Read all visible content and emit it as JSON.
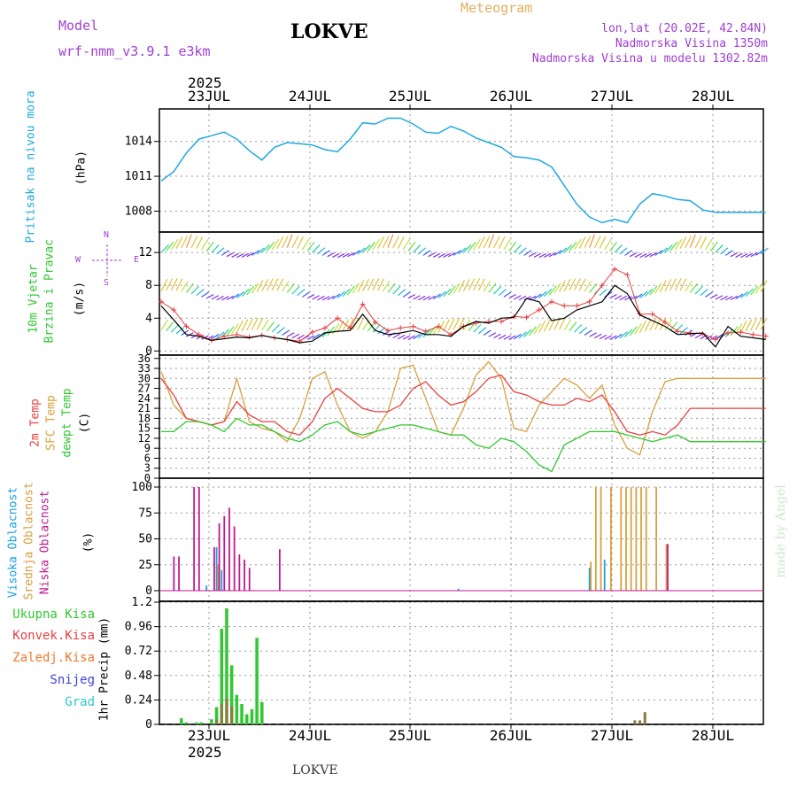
{
  "header": {
    "model_label": "Model",
    "model_name": "wrf-nmm_v3.9.1  e3km",
    "station": "LOKVE",
    "meteogram": "Meteogram",
    "lonlat": "lon,lat (20.02E, 42.84N)",
    "altitude": "Nadmorska Visina 1350m",
    "model_altitude": "Nadmorska Visina u modelu 1302.82m",
    "watermark": "made by Angel",
    "footer_station": "LOKVE"
  },
  "time_axis": {
    "year": "2025",
    "days": [
      "23JUL",
      "24JUL",
      "25JUL",
      "26JUL",
      "27JUL",
      "28JUL"
    ]
  },
  "panels": {
    "pressure": {
      "title": "Pritisak na nivou mora",
      "unit": "(hPa)",
      "ticks": [
        "1014",
        "1011",
        "1008"
      ]
    },
    "wind": {
      "title1": "10m Vjetar",
      "title2": "Brzina i Pravac",
      "unit": "(m/s)",
      "ticks": [
        "12",
        "8",
        "4",
        "0"
      ],
      "compass": {
        "n": "N",
        "s": "S",
        "w": "W",
        "e": "E"
      }
    },
    "temp": {
      "title1": "2m Temp",
      "title2": "SFC Temp",
      "title3": "dewpt Temp",
      "unit": "(C)",
      "ticks": [
        "36",
        "33",
        "30",
        "27",
        "24",
        "21",
        "18",
        "15",
        "12",
        "9",
        "6",
        "3",
        "0"
      ]
    },
    "cloud": {
      "title1": "Visoka Oblacnost",
      "title2": "Srednja Oblacnost",
      "title3": "Niska Oblacnost",
      "unit": "(%)",
      "ticks": [
        "100",
        "75",
        "50",
        "25",
        "0"
      ]
    },
    "precip": {
      "legend": [
        "Ukupna Kisa",
        "Konvek.Kisa",
        "Zaledj.Kisa",
        "Snijeg",
        "Grad"
      ],
      "unit": "1hr Precip (mm)",
      "ticks": [
        "1.2",
        "0.96",
        "0.72",
        "0.48",
        "0.24",
        "0"
      ]
    }
  },
  "colors": {
    "pressure": "#1fa8e0",
    "t2m": "#e84040",
    "sfc": "#d8a040",
    "dew": "#30c830",
    "high": "#20a0e0",
    "mid": "#d8a040",
    "low": "#c01890",
    "rain": "#30c830",
    "conv": "#e84040",
    "frz": "#f07830",
    "snow": "#4040e0",
    "hail": "#30c8c8",
    "model": "#a040d0",
    "station": "#000000",
    "meteogram": "#e0b060",
    "info": "#a040d0",
    "watermark": "#cfe6cf"
  },
  "chart_data": [
    {
      "type": "line",
      "title": "Pritisak na nivou mora",
      "ylabel": "(hPa)",
      "ylim": [
        1006.2,
        1016.8
      ],
      "x": [
        0,
        3,
        6,
        9,
        12,
        15,
        18,
        21,
        24,
        27,
        30,
        33,
        36,
        39,
        42,
        45,
        48,
        51,
        54,
        57,
        60,
        63,
        66,
        69,
        72,
        75,
        78,
        81,
        84,
        87,
        90,
        93,
        96,
        99,
        102,
        105,
        108,
        111,
        114,
        117,
        120,
        123,
        126,
        129,
        132,
        135,
        138,
        141,
        144
      ],
      "series": [
        {
          "name": "MSLP",
          "values": [
            1010.6,
            1011.4,
            1013.0,
            1014.2,
            1014.5,
            1014.8,
            1014.2,
            1013.2,
            1012.4,
            1013.5,
            1013.9,
            1013.8,
            1013.7,
            1013.3,
            1013.1,
            1014.2,
            1015.6,
            1015.5,
            1016.0,
            1016.0,
            1015.5,
            1014.8,
            1014.7,
            1015.3,
            1014.9,
            1014.3,
            1013.9,
            1013.5,
            1012.7,
            1012.6,
            1012.4,
            1011.8,
            1010.2,
            1008.6,
            1007.5,
            1007.0,
            1007.3,
            1007.0,
            1008.6,
            1009.5,
            1009.3,
            1009.0,
            1008.9,
            1008.1,
            1007.9,
            1007.9,
            1007.9,
            1007.9,
            1007.9
          ]
        }
      ]
    },
    {
      "type": "line",
      "title": "10m Vjetar - Brzina i Pravac",
      "ylabel": "(m/s)",
      "ylim": [
        -0.5,
        14.5
      ],
      "x": [
        0,
        3,
        6,
        9,
        12,
        15,
        18,
        21,
        24,
        27,
        30,
        33,
        36,
        39,
        42,
        45,
        48,
        51,
        54,
        57,
        60,
        63,
        66,
        69,
        72,
        75,
        78,
        81,
        84,
        87,
        90,
        93,
        96,
        99,
        102,
        105,
        108,
        111,
        114,
        117,
        120,
        123,
        126,
        129,
        132,
        135,
        138,
        141,
        144
      ],
      "series": [
        {
          "name": "speed",
          "values": [
            5.5,
            3.8,
            2.0,
            1.8,
            1.3,
            1.5,
            1.7,
            1.6,
            1.9,
            1.6,
            1.4,
            1.0,
            1.2,
            2.2,
            2.4,
            2.5,
            4.5,
            2.5,
            2.0,
            2.2,
            2.5,
            2.0,
            2.0,
            1.8,
            3.0,
            3.6,
            3.4,
            4.0,
            4.1,
            6.4,
            6.0,
            3.7,
            4.0,
            5.0,
            5.5,
            6.0,
            8.0,
            7.0,
            4.4,
            3.7,
            3.0,
            2.0,
            2.1,
            2.2,
            0.5,
            3.0,
            1.8,
            1.6,
            1.4
          ]
        },
        {
          "name": "gust",
          "values": [
            6.0,
            5.0,
            3.0,
            2.0,
            1.3,
            1.8,
            2.0,
            1.7,
            1.9,
            1.6,
            1.4,
            1.2,
            2.3,
            2.8,
            4.0,
            2.8,
            5.7,
            3.5,
            2.5,
            2.8,
            3.0,
            2.4,
            3.0,
            2.0,
            3.0,
            3.4,
            3.6,
            3.6,
            4.2,
            4.1,
            5.0,
            6.0,
            5.5,
            5.5,
            6.0,
            8.0,
            10.0,
            9.3,
            4.5,
            4.5,
            3.5,
            2.4,
            2.2,
            2.1,
            1.4,
            2.2,
            2.3,
            2.0,
            1.8
          ]
        }
      ]
    },
    {
      "type": "line",
      "title": "2m Temp / SFC Temp / dewpt Temp",
      "ylabel": "(C)",
      "ylim": [
        0,
        37
      ],
      "x": [
        0,
        3,
        6,
        9,
        12,
        15,
        18,
        21,
        24,
        27,
        30,
        33,
        36,
        39,
        42,
        45,
        48,
        51,
        54,
        57,
        60,
        63,
        66,
        69,
        72,
        75,
        78,
        81,
        84,
        87,
        90,
        93,
        96,
        99,
        102,
        105,
        108,
        111,
        114,
        117,
        120,
        123,
        126,
        129,
        132,
        135,
        138,
        141,
        144
      ],
      "series": [
        {
          "name": "2m Temp",
          "values": [
            30,
            25,
            18,
            17,
            16,
            17,
            23,
            19,
            17,
            17,
            14,
            13,
            17,
            24,
            27,
            24,
            21,
            20,
            20,
            22,
            27,
            29,
            25,
            22,
            23,
            26,
            30,
            31,
            26,
            25,
            23,
            22,
            22,
            24,
            23,
            25,
            20,
            14,
            13,
            14,
            13,
            16,
            21,
            21,
            21,
            21,
            21,
            21,
            21
          ]
        },
        {
          "name": "SFC Temp",
          "values": [
            32,
            22,
            18,
            17,
            16,
            17,
            30,
            17,
            15,
            14,
            11,
            18,
            30,
            32,
            22,
            14,
            12,
            14,
            20,
            33,
            34,
            24,
            14,
            13,
            21,
            31,
            35,
            30,
            15,
            14,
            22,
            26,
            30,
            28,
            24,
            28,
            16,
            9,
            7,
            20,
            29,
            30,
            30,
            30,
            30,
            30,
            30,
            30,
            30
          ]
        },
        {
          "name": "dewpt Temp",
          "values": [
            14,
            14,
            17,
            17,
            16,
            14,
            18,
            16,
            16,
            14,
            12,
            11,
            13,
            16,
            17,
            14,
            13,
            14,
            15,
            16,
            16,
            15,
            14,
            13,
            13,
            10,
            9,
            12,
            11,
            8,
            4,
            2,
            10,
            12,
            14,
            14,
            14,
            13,
            12,
            11,
            12,
            13,
            11,
            11,
            11,
            11,
            11,
            11,
            11
          ]
        }
      ]
    },
    {
      "type": "bar",
      "title": "Visoka / Srednja / Niska Oblacnost",
      "ylabel": "(%)",
      "ylim": [
        0,
        100
      ],
      "series": [
        {
          "name": "Visoka Oblacnost",
          "x": [
            9,
            11,
            12,
            59,
            85,
            88
          ],
          "values": [
            5,
            42,
            20,
            2,
            22,
            30
          ]
        },
        {
          "name": "Srednja Oblacnost",
          "x": [
            11,
            85,
            86,
            87,
            89,
            91,
            92,
            93,
            94,
            95,
            96,
            98,
            100
          ],
          "values": [
            25,
            28,
            100,
            100,
            100,
            100,
            100,
            100,
            100,
            100,
            100,
            100,
            45
          ]
        },
        {
          "name": "Niska Oblacnost",
          "x": [
            2,
            3,
            6,
            7,
            10,
            11,
            12,
            13,
            14,
            15,
            16,
            17,
            23,
            100
          ],
          "values": [
            33,
            33,
            100,
            100,
            42,
            65,
            72,
            80,
            62,
            35,
            30,
            22,
            40,
            45
          ]
        }
      ]
    },
    {
      "type": "bar",
      "title": "1hr Precip",
      "ylabel": "1hr Precip (mm)",
      "ylim": [
        0,
        1.2
      ],
      "series": [
        {
          "name": "Ukupna Kisa",
          "x": [
            4,
            5,
            7,
            8,
            10,
            11,
            12,
            13,
            14,
            15,
            16,
            17,
            18,
            19,
            20
          ],
          "values": [
            0.06,
            0.02,
            0.02,
            0.02,
            0.05,
            0.17,
            0.94,
            1.14,
            0.58,
            0.29,
            0.2,
            0.1,
            0.15,
            0.85,
            0.22
          ]
        },
        {
          "name": "Zaledj.Kisa",
          "x": [
            11,
            12,
            13,
            14,
            94,
            95,
            96
          ],
          "values": [
            0.05,
            0.2,
            0.25,
            0.18,
            0.04,
            0.04,
            0.12
          ]
        }
      ]
    }
  ]
}
